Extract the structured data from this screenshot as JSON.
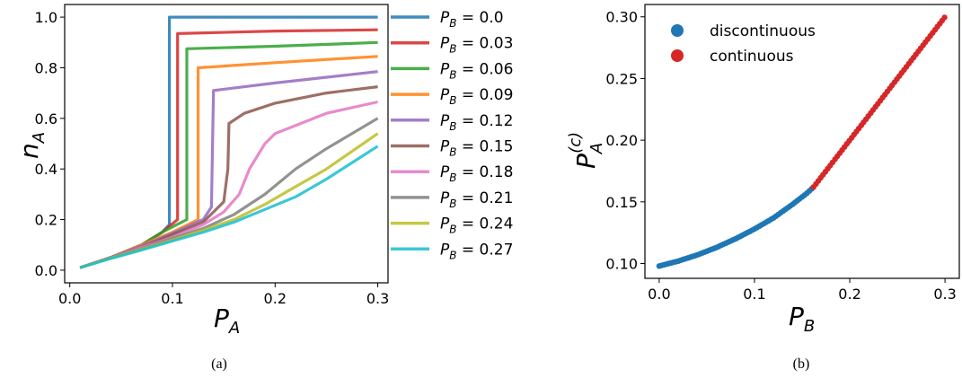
{
  "chart_data": [
    {
      "type": "line",
      "panel": "(a)",
      "xlabel": "P_A",
      "ylabel": "n_A",
      "xlim": [
        -0.005,
        0.31
      ],
      "ylim": [
        -0.05,
        1.05
      ],
      "xticks": [
        "0.0",
        "0.1",
        "0.2",
        "0.3"
      ],
      "yticks": [
        "0.0",
        "0.2",
        "0.4",
        "0.6",
        "0.8",
        "1.0"
      ],
      "legend_position": "right, outside",
      "series": [
        {
          "name": "P_B = 0.0",
          "pb": "0.0",
          "color": "#1f77b4",
          "points": [
            [
              0.01,
              0.01
            ],
            [
              0.04,
              0.05
            ],
            [
              0.07,
              0.1
            ],
            [
              0.09,
              0.15
            ],
            [
              0.097,
              0.18
            ],
            [
              0.097,
              1.0
            ],
            [
              0.3,
              1.0
            ]
          ]
        },
        {
          "name": "P_B = 0.03",
          "pb": "0.03",
          "color": "#d62728",
          "points": [
            [
              0.01,
              0.01
            ],
            [
              0.04,
              0.05
            ],
            [
              0.07,
              0.1
            ],
            [
              0.09,
              0.15
            ],
            [
              0.105,
              0.2
            ],
            [
              0.105,
              0.935
            ],
            [
              0.2,
              0.945
            ],
            [
              0.3,
              0.95
            ]
          ]
        },
        {
          "name": "P_B = 0.06",
          "pb": "0.06",
          "color": "#2ca02c",
          "points": [
            [
              0.01,
              0.01
            ],
            [
              0.04,
              0.05
            ],
            [
              0.07,
              0.1
            ],
            [
              0.09,
              0.15
            ],
            [
              0.114,
              0.2
            ],
            [
              0.114,
              0.875
            ],
            [
              0.2,
              0.885
            ],
            [
              0.3,
              0.9
            ]
          ]
        },
        {
          "name": "P_B = 0.09",
          "pb": "0.09",
          "color": "#ff7f0e",
          "points": [
            [
              0.01,
              0.01
            ],
            [
              0.04,
              0.05
            ],
            [
              0.07,
              0.1
            ],
            [
              0.1,
              0.15
            ],
            [
              0.125,
              0.2
            ],
            [
              0.125,
              0.8
            ],
            [
              0.2,
              0.82
            ],
            [
              0.3,
              0.845
            ]
          ]
        },
        {
          "name": "P_B = 0.12",
          "pb": "0.12",
          "color": "#9467bd",
          "points": [
            [
              0.01,
              0.01
            ],
            [
              0.04,
              0.05
            ],
            [
              0.07,
              0.095
            ],
            [
              0.1,
              0.145
            ],
            [
              0.13,
              0.2
            ],
            [
              0.138,
              0.25
            ],
            [
              0.14,
              0.71
            ],
            [
              0.2,
              0.74
            ],
            [
              0.3,
              0.785
            ]
          ]
        },
        {
          "name": "P_B = 0.15",
          "pb": "0.15",
          "color": "#8c564b",
          "points": [
            [
              0.01,
              0.01
            ],
            [
              0.04,
              0.05
            ],
            [
              0.07,
              0.09
            ],
            [
              0.1,
              0.14
            ],
            [
              0.13,
              0.19
            ],
            [
              0.15,
              0.27
            ],
            [
              0.154,
              0.4
            ],
            [
              0.155,
              0.58
            ],
            [
              0.17,
              0.62
            ],
            [
              0.2,
              0.66
            ],
            [
              0.25,
              0.7
            ],
            [
              0.3,
              0.725
            ]
          ]
        },
        {
          "name": "P_B = 0.18",
          "pb": "0.18",
          "color": "#e377c2",
          "points": [
            [
              0.01,
              0.01
            ],
            [
              0.04,
              0.05
            ],
            [
              0.07,
              0.09
            ],
            [
              0.1,
              0.13
            ],
            [
              0.13,
              0.18
            ],
            [
              0.15,
              0.23
            ],
            [
              0.165,
              0.3
            ],
            [
              0.175,
              0.4
            ],
            [
              0.19,
              0.5
            ],
            [
              0.2,
              0.54
            ],
            [
              0.25,
              0.62
            ],
            [
              0.3,
              0.665
            ]
          ]
        },
        {
          "name": "P_B = 0.21",
          "pb": "0.21",
          "color": "#7f7f7f",
          "points": [
            [
              0.01,
              0.01
            ],
            [
              0.04,
              0.05
            ],
            [
              0.07,
              0.085
            ],
            [
              0.1,
              0.125
            ],
            [
              0.13,
              0.165
            ],
            [
              0.16,
              0.22
            ],
            [
              0.19,
              0.3
            ],
            [
              0.22,
              0.4
            ],
            [
              0.25,
              0.48
            ],
            [
              0.3,
              0.6
            ]
          ]
        },
        {
          "name": "P_B = 0.24",
          "pb": "0.24",
          "color": "#bcbd22",
          "points": [
            [
              0.01,
              0.01
            ],
            [
              0.04,
              0.048
            ],
            [
              0.07,
              0.083
            ],
            [
              0.1,
              0.12
            ],
            [
              0.13,
              0.158
            ],
            [
              0.16,
              0.2
            ],
            [
              0.19,
              0.26
            ],
            [
              0.22,
              0.33
            ],
            [
              0.25,
              0.4
            ],
            [
              0.3,
              0.54
            ]
          ]
        },
        {
          "name": "P_B = 0.27",
          "pb": "0.27",
          "color": "#17becf",
          "points": [
            [
              0.01,
              0.01
            ],
            [
              0.04,
              0.046
            ],
            [
              0.07,
              0.08
            ],
            [
              0.1,
              0.115
            ],
            [
              0.13,
              0.15
            ],
            [
              0.16,
              0.19
            ],
            [
              0.19,
              0.24
            ],
            [
              0.22,
              0.29
            ],
            [
              0.25,
              0.36
            ],
            [
              0.3,
              0.49
            ]
          ]
        }
      ]
    },
    {
      "type": "scatter",
      "panel": "(b)",
      "xlabel": "P_B",
      "ylabel": "P_A^(c)",
      "xlim": [
        -0.015,
        0.315
      ],
      "ylim": [
        0.088,
        0.31
      ],
      "xticks": [
        "0.0",
        "0.1",
        "0.2",
        "0.3"
      ],
      "yticks": [
        "0.10",
        "0.15",
        "0.20",
        "0.25",
        "0.30"
      ],
      "legend_position": "upper-left",
      "series": [
        {
          "name": "discontinuous",
          "color": "#1f77b4",
          "x_range": [
            0.0,
            0.162
          ],
          "points": [
            [
              0.0,
              0.098
            ],
            [
              0.02,
              0.102
            ],
            [
              0.04,
              0.107
            ],
            [
              0.06,
              0.113
            ],
            [
              0.08,
              0.12
            ],
            [
              0.1,
              0.128
            ],
            [
              0.12,
              0.137
            ],
            [
              0.14,
              0.148
            ],
            [
              0.155,
              0.157
            ],
            [
              0.162,
              0.162
            ]
          ]
        },
        {
          "name": "continuous",
          "color": "#d62728",
          "x_range": [
            0.162,
            0.3
          ],
          "points": [
            [
              0.162,
              0.162
            ],
            [
              0.2,
              0.2
            ],
            [
              0.25,
              0.25
            ],
            [
              0.3,
              0.3
            ]
          ]
        }
      ]
    }
  ],
  "captions": {
    "a": "(a)",
    "b": "(b)"
  }
}
